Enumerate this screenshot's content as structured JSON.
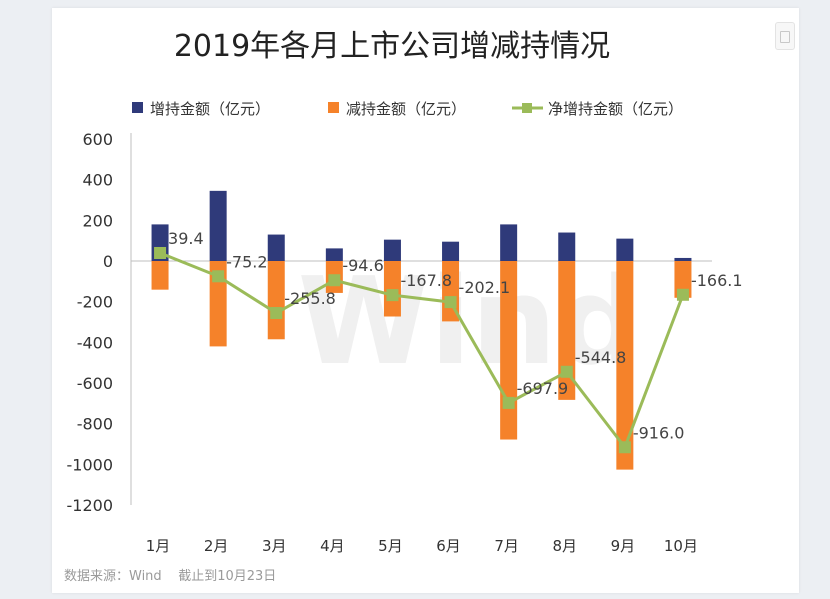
{
  "chart_data": {
    "type": "bar",
    "title": "2019年各月上市公司增减持情况",
    "categories": [
      "1月",
      "2月",
      "3月",
      "4月",
      "5月",
      "6月",
      "7月",
      "8月",
      "9月",
      "10月"
    ],
    "series": [
      {
        "name": "增持金额（亿元）",
        "kind": "bar",
        "color": "#2f3a7a",
        "values": [
          180,
          345,
          130,
          62,
          105,
          95,
          180,
          140,
          110,
          15
        ]
      },
      {
        "name": "减持金额（亿元）",
        "kind": "bar",
        "color": "#f5822a",
        "values": [
          -141,
          -420,
          -385,
          -157,
          -273,
          -297,
          -878,
          -683,
          -1026,
          -181
        ]
      },
      {
        "name": "净增持金额（亿元）",
        "kind": "line",
        "color": "#9bbb59",
        "values": [
          39.4,
          -75.2,
          -255.8,
          -94.6,
          -167.8,
          -202.1,
          -697.9,
          -544.8,
          -916.0,
          -166.1
        ],
        "labels": [
          "39.4",
          "-75.2",
          "-255.8",
          "-94.6",
          "-167.8",
          "-202.1",
          "-697.9",
          "-544.8",
          "-916.0",
          "-166.1"
        ]
      }
    ],
    "yticks": [
      "600",
      "400",
      "200",
      "0",
      "-200",
      "-400",
      "-600",
      "-800",
      "-1000",
      "-1200"
    ],
    "ylim": [
      -1200,
      600
    ],
    "legend_position": "top",
    "grid": false,
    "watermark": "Wind",
    "source_note": "数据来源：Wind    截止到10月23日"
  }
}
